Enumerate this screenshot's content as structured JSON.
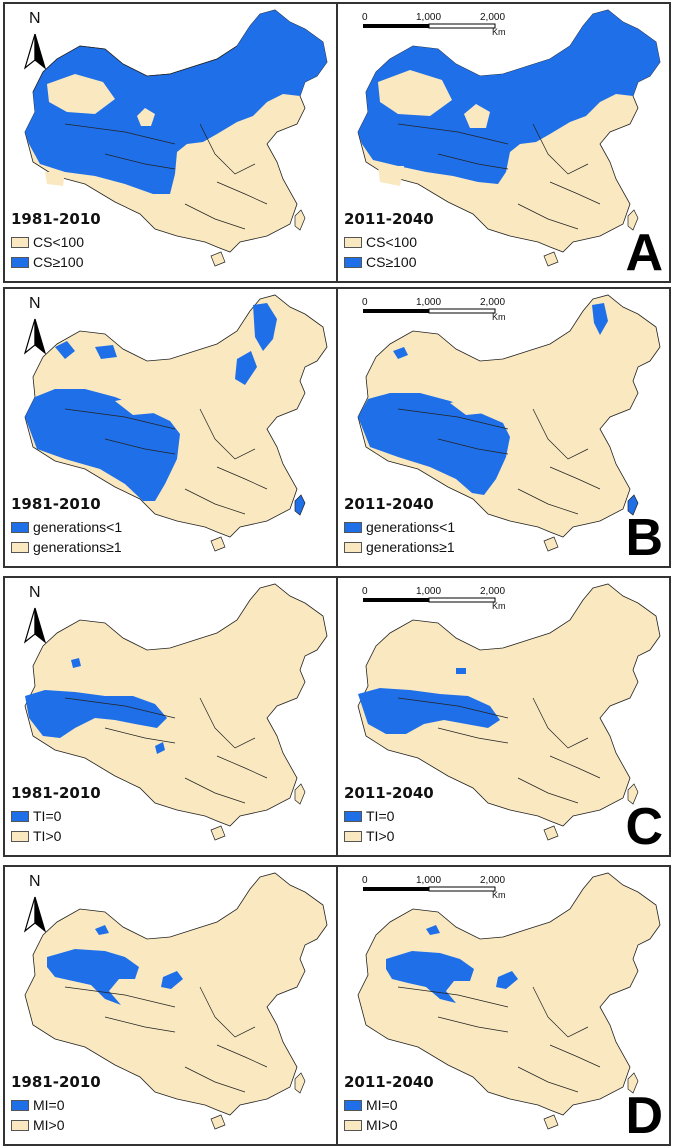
{
  "colors": {
    "blue": "#1f6fe8",
    "tan": "#fae9c0",
    "border": "#333333"
  },
  "scalebar": {
    "ticks": [
      "0",
      "1,000",
      "2,000"
    ],
    "unit": "Km"
  },
  "north_label": "N",
  "rows": [
    {
      "letter": "A",
      "left": {
        "period": "1981-2010",
        "legend": [
          {
            "label": "CS<100",
            "color": "tan"
          },
          {
            "label": "CS≥100",
            "color": "blue"
          }
        ]
      },
      "right": {
        "period": "2011-2040",
        "legend": [
          {
            "label": "CS<100",
            "color": "tan"
          },
          {
            "label": "CS≥100",
            "color": "blue"
          }
        ]
      }
    },
    {
      "letter": "B",
      "left": {
        "period": "1981-2010",
        "legend": [
          {
            "label": "generations<1",
            "color": "blue"
          },
          {
            "label": "generations≥1",
            "color": "tan"
          }
        ]
      },
      "right": {
        "period": "2011-2040",
        "legend": [
          {
            "label": "generations<1",
            "color": "blue"
          },
          {
            "label": "generations≥1",
            "color": "tan"
          }
        ]
      }
    },
    {
      "letter": "C",
      "left": {
        "period": "1981-2010",
        "legend": [
          {
            "label": "TI=0",
            "color": "blue"
          },
          {
            "label": "TI>0",
            "color": "tan"
          }
        ]
      },
      "right": {
        "period": "2011-2040",
        "legend": [
          {
            "label": "TI=0",
            "color": "blue"
          },
          {
            "label": "TI>0",
            "color": "tan"
          }
        ]
      }
    },
    {
      "letter": "D",
      "left": {
        "period": "1981-2010",
        "legend": [
          {
            "label": "MI=0",
            "color": "blue"
          },
          {
            "label": "MI>0",
            "color": "tan"
          }
        ]
      },
      "right": {
        "period": "2011-2040",
        "legend": [
          {
            "label": "MI=0",
            "color": "blue"
          },
          {
            "label": "MI>0",
            "color": "tan"
          }
        ]
      }
    }
  ]
}
